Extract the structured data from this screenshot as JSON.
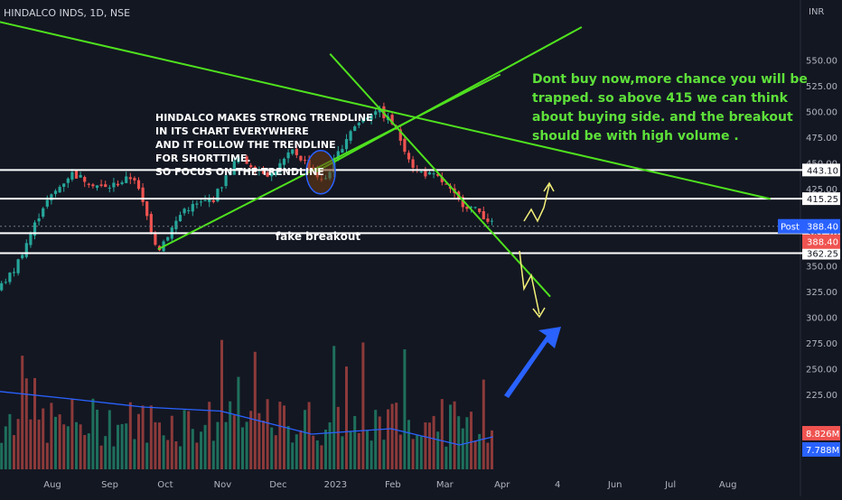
{
  "header": {
    "symbol_title": "HINDALCO INDS, 1D, NSE",
    "currency": "INR"
  },
  "colors": {
    "background": "#131722",
    "up_candle": "#26a69a",
    "down_candle": "#ef5350",
    "trendline": "#4fe11e",
    "level_line": "#ffffff",
    "volume_ma": "#2962ff",
    "annotation_text": "#5ee03a",
    "callout_arrow": "#2962ff",
    "path_arrow": "#f4f179"
  },
  "chart_data": {
    "type": "candlestick",
    "title": "HINDALCO INDS, 1D, NSE",
    "ylim": [
      225,
      575
    ],
    "y_ticks": [
      {
        "value": 550,
        "label": "550.00"
      },
      {
        "value": 525,
        "label": "525.00"
      },
      {
        "value": 500,
        "label": "500.00"
      },
      {
        "value": 475,
        "label": "475.00"
      },
      {
        "value": 450,
        "label": "450.00"
      },
      {
        "value": 425,
        "label": "425.00"
      },
      {
        "value": 350,
        "label": "350.00"
      },
      {
        "value": 325,
        "label": "325.00"
      },
      {
        "value": 300,
        "label": "300.00"
      },
      {
        "value": 275,
        "label": "275.00"
      },
      {
        "value": 250,
        "label": "250.00"
      },
      {
        "value": 225,
        "label": "225.00"
      }
    ],
    "x_ticks": [
      "Aug",
      "Sep",
      "Oct",
      "Nov",
      "Dec",
      "2023",
      "Feb",
      "Mar",
      "Apr",
      "4",
      "Jun",
      "Jul",
      "Aug"
    ],
    "price_path": [
      {
        "date": "2022-07-01",
        "price": 322
      },
      {
        "date": "2022-07-12",
        "price": 345
      },
      {
        "date": "2022-07-28",
        "price": 408
      },
      {
        "date": "2022-08-12",
        "price": 440
      },
      {
        "date": "2022-08-30",
        "price": 425
      },
      {
        "date": "2022-09-15",
        "price": 437
      },
      {
        "date": "2022-09-28",
        "price": 365
      },
      {
        "date": "2022-10-12",
        "price": 405
      },
      {
        "date": "2022-10-28",
        "price": 415
      },
      {
        "date": "2022-11-10",
        "price": 455
      },
      {
        "date": "2022-11-28",
        "price": 438
      },
      {
        "date": "2022-12-10",
        "price": 462
      },
      {
        "date": "2022-12-21",
        "price": 443
      },
      {
        "date": "2022-12-26",
        "price": 430
      },
      {
        "date": "2023-01-10",
        "price": 482
      },
      {
        "date": "2023-01-24",
        "price": 503
      },
      {
        "date": "2023-02-02",
        "price": 488
      },
      {
        "date": "2023-02-14",
        "price": 443
      },
      {
        "date": "2023-02-27",
        "price": 435
      },
      {
        "date": "2023-03-10",
        "price": 412
      },
      {
        "date": "2023-03-21",
        "price": 402
      },
      {
        "date": "2023-03-28",
        "price": 390
      }
    ],
    "volume": {
      "ma_label": "7.788M",
      "last_label": "8.826M",
      "ma_path": [
        {
          "date": "2022-07-01",
          "value": 0.58
        },
        {
          "date": "2022-08-12",
          "value": 0.52
        },
        {
          "date": "2022-09-20",
          "value": 0.46
        },
        {
          "date": "2022-11-01",
          "value": 0.43
        },
        {
          "date": "2022-12-20",
          "value": 0.26
        },
        {
          "date": "2023-02-01",
          "value": 0.3
        },
        {
          "date": "2023-03-10",
          "value": 0.18
        },
        {
          "date": "2023-03-28",
          "value": 0.24
        }
      ]
    },
    "horizontal_levels": [
      {
        "value": 443.1,
        "label": "443.10"
      },
      {
        "value": 415.25,
        "label": "415.25"
      },
      {
        "value": 381.7,
        "label": "381.70"
      },
      {
        "value": 362.25,
        "label": "362.25"
      }
    ],
    "price_badges": [
      {
        "label": "Post",
        "value": "388.40"
      },
      {
        "label": "",
        "value": "388.40"
      }
    ],
    "trendlines": [
      {
        "from": {
          "date": "2022-06-20",
          "price": 593
        },
        "to": {
          "date": "2023-08-25",
          "price": 415
        }
      },
      {
        "from": {
          "date": "2022-09-28",
          "price": 366
        },
        "to": {
          "date": "2023-04-01",
          "price": 536
        }
      },
      {
        "from": {
          "date": "2022-12-22",
          "price": 441
        },
        "to": {
          "date": "2023-05-15",
          "price": 582
        }
      },
      {
        "from": {
          "date": "2022-12-30",
          "price": 556
        },
        "to": {
          "date": "2023-04-28",
          "price": 320
        }
      }
    ],
    "annotations": {
      "main_text": "HINDALCO MAKES STRONG TRENDLINE\n IN ITS CHART EVERYWHERE\n AND IT FOLLOW THE TRENDLINE\n FOR SHORTTIME.\nSO FOCUS ON THE TRENDLINE",
      "fake_breakout": "fake breakout",
      "advice": "Dont buy now,more chance you will be\ntrapped. so above 415 we can think\nabout buying side. and the breakout\nshould be with high volume ."
    }
  }
}
